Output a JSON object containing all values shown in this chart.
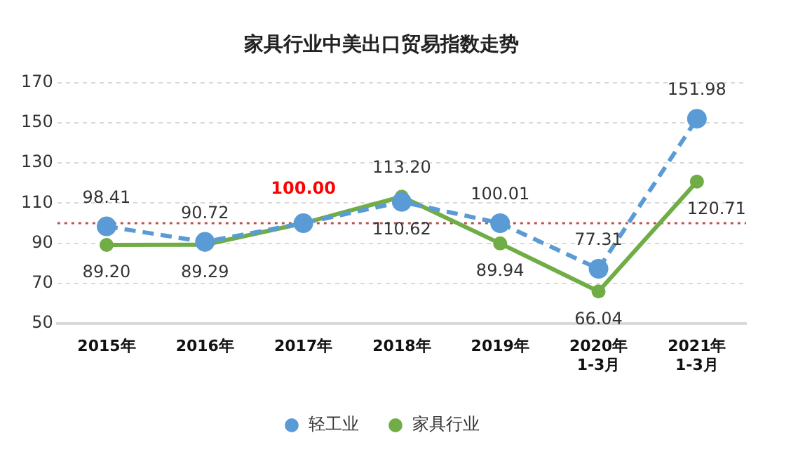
{
  "chart_data": {
    "type": "line",
    "title": "家具行业中美出口贸易指数走势",
    "categories": [
      "2015年",
      "2016年",
      "2017年",
      "2018年",
      "2019年",
      "2020年\n1-3月",
      "2021年\n1-3月"
    ],
    "series": [
      {
        "name": "轻工业",
        "color": "#5b9bd5",
        "line_style": "dashed",
        "values": [
          98.41,
          90.72,
          100.0,
          110.62,
          100.01,
          77.31,
          151.98
        ],
        "value_labels": [
          "98.41",
          "90.72",
          null,
          "110.62",
          "100.01",
          "77.31",
          "151.98"
        ]
      },
      {
        "name": "家具行业",
        "color": "#70ad47",
        "line_style": "solid",
        "values": [
          89.2,
          89.29,
          100.0,
          113.2,
          89.94,
          66.04,
          120.71
        ],
        "value_labels": [
          "89.20",
          "89.29",
          null,
          "113.20",
          "89.94",
          "66.04",
          "120.71"
        ]
      }
    ],
    "annotations": [
      {
        "text": "100.00",
        "x": "2017年",
        "y": 100.0
      }
    ],
    "ref_lines": [
      {
        "axis": "y",
        "value": 100,
        "color": "#c0504d",
        "line_style": "dotted"
      }
    ],
    "ylim": [
      50,
      170
    ],
    "yticks": [
      50,
      70,
      90,
      110,
      130,
      150,
      170
    ],
    "grid": "y",
    "legend": "bottom",
    "marker": "circle"
  }
}
